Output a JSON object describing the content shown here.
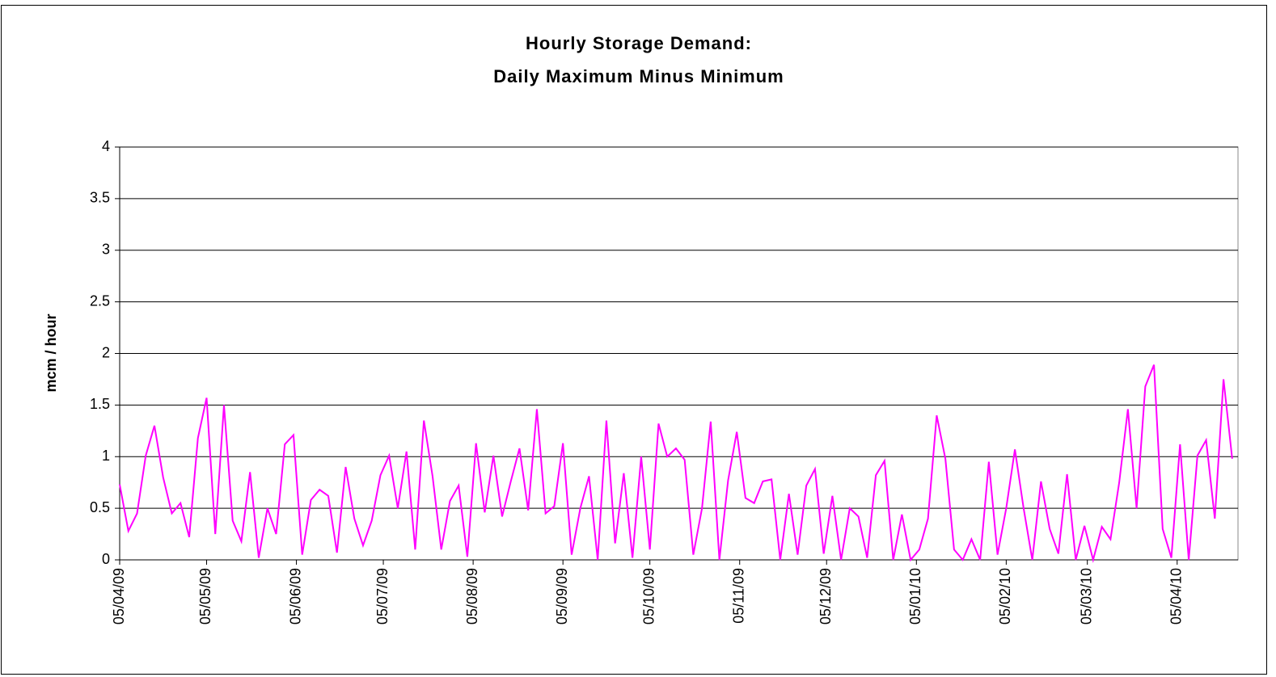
{
  "chart_data": {
    "type": "line",
    "title_lines": [
      "Hourly Storage Demand:",
      "Daily Maximum Minus Minimum"
    ],
    "y_label": "mcm / hour",
    "color": "#ff00ff",
    "grid": true,
    "ylim": [
      0,
      4
    ],
    "yticks": [
      0,
      0.5,
      1,
      1.5,
      2,
      2.5,
      3,
      3.5,
      4
    ],
    "xlim": [
      0,
      386
    ],
    "xticks": [
      {
        "value": 0,
        "label": "05/04/09"
      },
      {
        "value": 30,
        "label": "05/05/09"
      },
      {
        "value": 61,
        "label": "05/06/09"
      },
      {
        "value": 91,
        "label": "05/07/09"
      },
      {
        "value": 122,
        "label": "05/08/09"
      },
      {
        "value": 153,
        "label": "05/09/09"
      },
      {
        "value": 183,
        "label": "05/10/09"
      },
      {
        "value": 214,
        "label": "05/11/09"
      },
      {
        "value": 244,
        "label": "05/12/09"
      },
      {
        "value": 275,
        "label": "05/01/10"
      },
      {
        "value": 306,
        "label": "05/02/10"
      },
      {
        "value": 334,
        "label": "05/03/10"
      },
      {
        "value": 365,
        "label": "05/04/10"
      }
    ],
    "x": [
      0,
      3,
      6,
      9,
      12,
      15,
      18,
      21,
      24,
      27,
      30,
      33,
      36,
      39,
      42,
      45,
      48,
      51,
      54,
      57,
      60,
      63,
      66,
      69,
      72,
      75,
      78,
      81,
      84,
      87,
      90,
      93,
      96,
      99,
      102,
      105,
      108,
      111,
      114,
      117,
      120,
      123,
      126,
      129,
      132,
      135,
      138,
      141,
      144,
      147,
      150,
      153,
      156,
      159,
      162,
      165,
      168,
      171,
      174,
      177,
      180,
      183,
      186,
      189,
      192,
      195,
      198,
      201,
      204,
      207,
      210,
      213,
      216,
      219,
      222,
      225,
      228,
      231,
      234,
      237,
      240,
      243,
      246,
      249,
      252,
      255,
      258,
      261,
      264,
      267,
      270,
      273,
      276,
      279,
      282,
      285,
      288,
      291,
      294,
      297,
      300,
      303,
      306,
      309,
      312,
      315,
      318,
      321,
      324,
      327,
      330,
      333,
      336,
      339,
      342,
      345,
      348,
      351,
      354,
      357,
      360,
      363,
      366,
      369,
      372,
      375,
      378,
      381,
      384
    ],
    "values": [
      0.73,
      0.28,
      0.45,
      1.01,
      1.3,
      0.8,
      0.45,
      0.55,
      0.22,
      1.18,
      1.57,
      0.25,
      1.5,
      0.38,
      0.18,
      0.85,
      0.02,
      0.5,
      0.25,
      1.12,
      1.21,
      0.05,
      0.58,
      0.68,
      0.62,
      0.07,
      0.9,
      0.4,
      0.14,
      0.38,
      0.82,
      1.01,
      0.5,
      1.05,
      0.1,
      1.35,
      0.81,
      0.1,
      0.57,
      0.72,
      0.03,
      1.13,
      0.46,
      1.01,
      0.42,
      0.76,
      1.08,
      0.48,
      1.46,
      0.45,
      0.52,
      1.13,
      0.05,
      0.5,
      0.81,
      0.0,
      1.35,
      0.16,
      0.84,
      0.02,
      1.0,
      0.1,
      1.32,
      1.0,
      1.08,
      0.97,
      0.05,
      0.5,
      1.34,
      0.0,
      0.77,
      1.24,
      0.6,
      0.55,
      0.76,
      0.78,
      0.0,
      0.64,
      0.05,
      0.72,
      0.88,
      0.06,
      0.62,
      0.0,
      0.5,
      0.42,
      0.02,
      0.82,
      0.96,
      0.0,
      0.44,
      0.0,
      0.1,
      0.4,
      1.4,
      0.98,
      0.1,
      0.0,
      0.2,
      0.0,
      0.95,
      0.05,
      0.5,
      1.07,
      0.5,
      0.0,
      0.76,
      0.3,
      0.06,
      0.83,
      0.0,
      0.33,
      0.0,
      0.32,
      0.2,
      0.75,
      1.46,
      0.5,
      1.68,
      1.89,
      0.3,
      0.02,
      1.12,
      0.0,
      1.01,
      1.16,
      0.4,
      1.75,
      0.98
    ]
  }
}
